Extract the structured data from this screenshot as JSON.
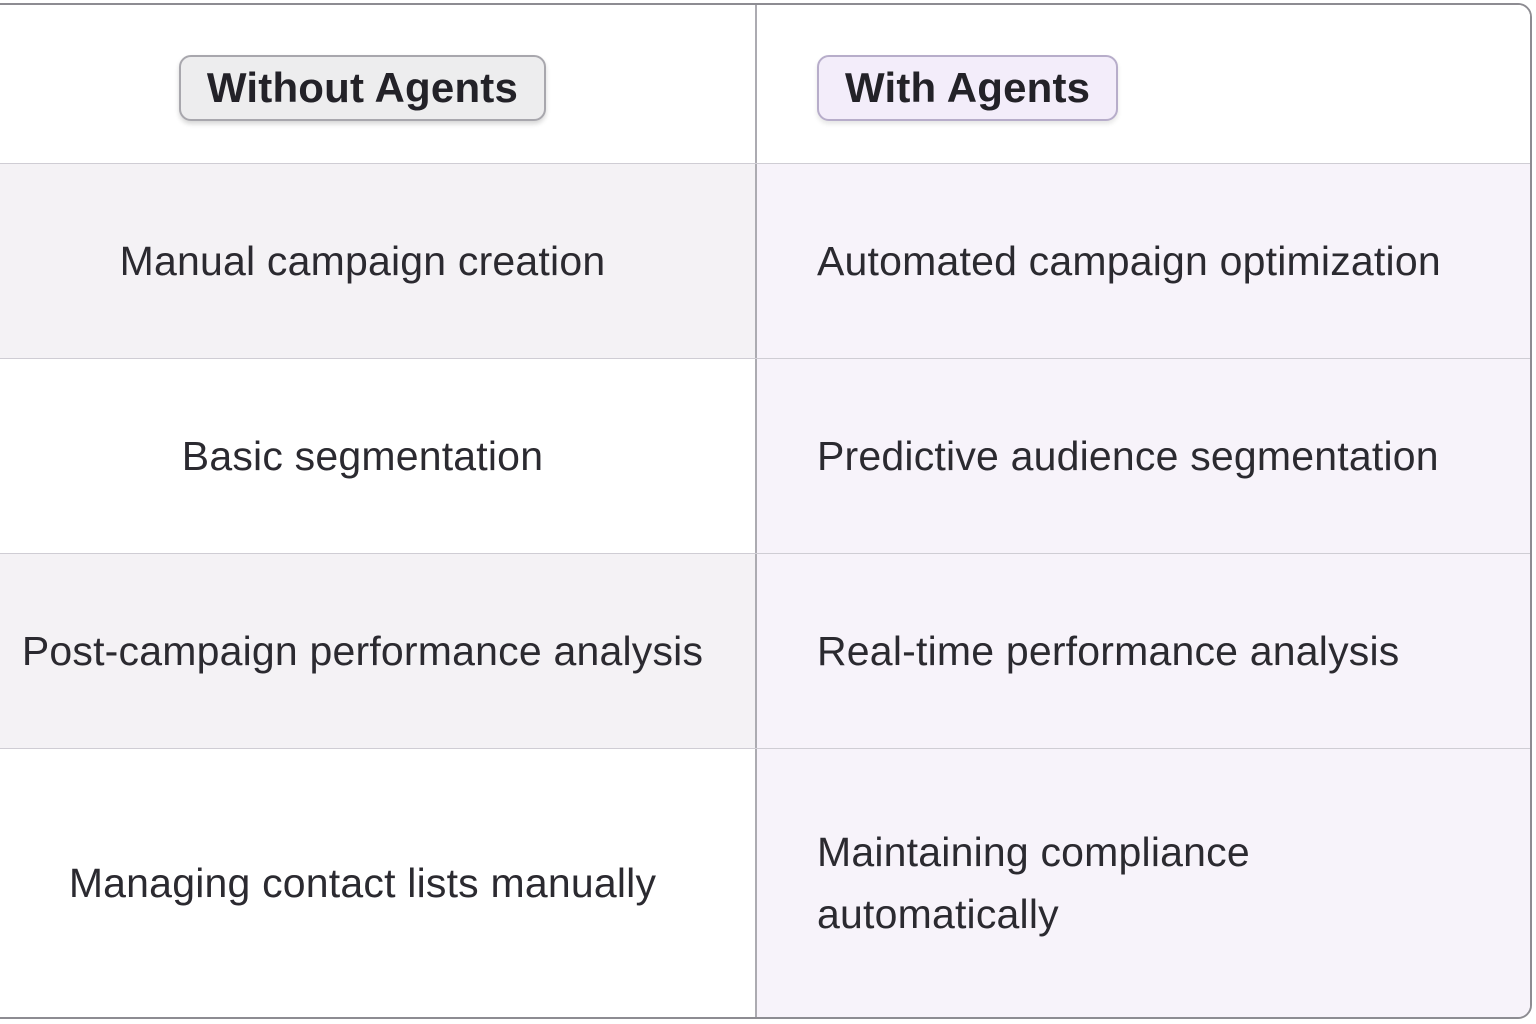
{
  "theme": {
    "outer_border": "#8d8c92",
    "column_divider": "#acabb1",
    "row_divider": "#cfcdd4",
    "header_bg": "#ffffff",
    "left_row_alt_bg": "#f4f2f5",
    "left_row_bg": "#ffffff",
    "right_col_bg": "#f7f3fa",
    "row_text": "#2b2a30",
    "badge_text": "#232228",
    "without_badge_bg": "#ededee",
    "without_badge_border": "#a8a7ad",
    "with_badge_bg": "#f3edfa",
    "with_badge_border": "#b7adca"
  },
  "comparison_table": {
    "columns": [
      {
        "key": "without",
        "header": "Without Agents"
      },
      {
        "key": "with",
        "header": "With Agents"
      }
    ],
    "rows": [
      {
        "without": "Manual campaign creation",
        "with": "Automated campaign optimization"
      },
      {
        "without": "Basic segmentation",
        "with": "Predictive audience segmentation"
      },
      {
        "without": "Post-campaign performance analysis",
        "with": "Real-time performance analysis"
      },
      {
        "without": "Managing contact lists manually",
        "with": "Maintaining compliance automatically"
      }
    ]
  },
  "chart_data": {
    "type": "table",
    "columns": [
      "Without Agents",
      "With Agents"
    ],
    "rows": [
      [
        "Manual campaign creation",
        "Automated campaign optimization"
      ],
      [
        "Basic segmentation",
        "Predictive audience segmentation"
      ],
      [
        "Post-campaign performance analysis",
        "Real-time performance analysis"
      ],
      [
        "Managing contact lists manually",
        "Maintaining compliance automatically"
      ]
    ]
  }
}
